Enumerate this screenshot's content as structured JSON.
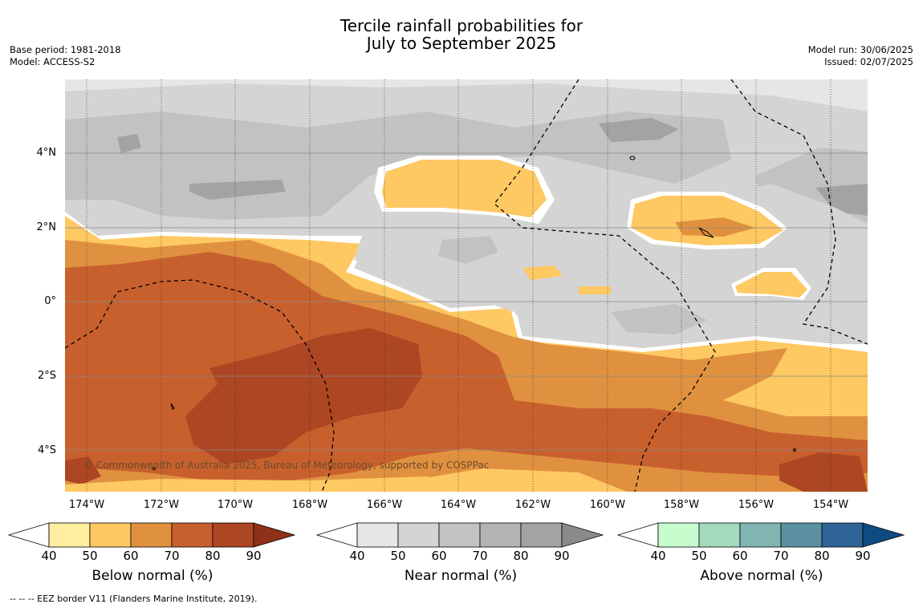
{
  "title": {
    "line1": "Tercile rainfall probabilities for",
    "line2": "July to September 2025"
  },
  "meta_left": {
    "base_period": "Base period: 1981-2018",
    "model": "Model: ACCESS-S2"
  },
  "meta_right": {
    "model_run": "Model run: 30/06/2025",
    "issued": "Issued: 02/07/2025"
  },
  "map": {
    "lat_labels": [
      "4°N",
      "2°N",
      "0°",
      "2°S",
      "4°S"
    ],
    "lon_labels": [
      "174°W",
      "172°W",
      "170°W",
      "168°W",
      "166°W",
      "164°W",
      "162°W",
      "160°W",
      "158°W",
      "156°W",
      "154°W"
    ],
    "copyright": "© Commonwealth of Australia 2025, Bureau of Meteorology, supported by COSPPac"
  },
  "colorbars": [
    {
      "title": "Below normal (%)",
      "ticks": [
        "40",
        "50",
        "60",
        "70",
        "80",
        "90"
      ],
      "colors": [
        "#ffffff",
        "#ffeda0",
        "#fec862",
        "#e0913f",
        "#c8602e",
        "#ad4623",
        "#8e3118"
      ]
    },
    {
      "title": "Near normal (%)",
      "ticks": [
        "40",
        "50",
        "60",
        "70",
        "80",
        "90"
      ],
      "colors": [
        "#ffffff",
        "#e6e6e6",
        "#d4d4d4",
        "#c2c2c2",
        "#b3b3b3",
        "#a3a3a3",
        "#8a8a8a"
      ]
    },
    {
      "title": "Above normal (%)",
      "ticks": [
        "40",
        "50",
        "60",
        "70",
        "80",
        "90"
      ],
      "colors": [
        "#ffffff",
        "#c7fcce",
        "#a3d9bd",
        "#80b5b1",
        "#5b91a0",
        "#2e6496",
        "#0f4a80"
      ]
    }
  ],
  "footer": "--  --  -- EEZ border V11 (Flanders Marine Institute, 2019)."
}
